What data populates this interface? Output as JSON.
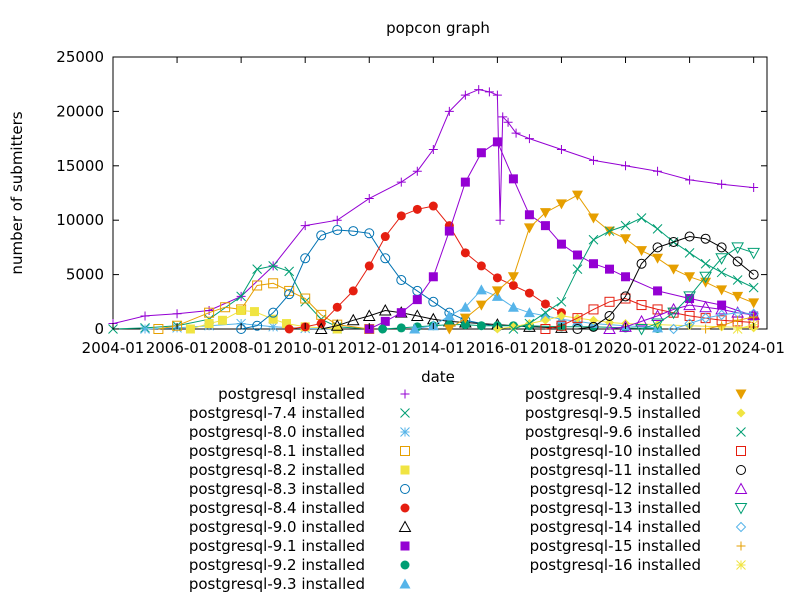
{
  "chart_data": {
    "type": "line",
    "title": "popcon graph",
    "xlabel": "date",
    "ylabel": "number of submitters",
    "x_range": [
      "2004-01",
      "2024-06"
    ],
    "x_ticks": [
      "2004-01",
      "2006-01",
      "2008-01",
      "2010-01",
      "2012-01",
      "2014-01",
      "2016-01",
      "2018-01",
      "2020-01",
      "2022-01",
      "2024-01"
    ],
    "ylim": [
      0,
      25000
    ],
    "y_ticks": [
      0,
      5000,
      10000,
      15000,
      20000,
      25000
    ],
    "grid": false,
    "legend_position": "bottom, two columns",
    "series": [
      {
        "name": "postgresql installed",
        "color": "#9400d3",
        "marker": "plus",
        "x": [
          "2004-01",
          "2005-01",
          "2006-01",
          "2007-01",
          "2008-01",
          "2009-01",
          "2010-01",
          "2011-01",
          "2012-01",
          "2013-01",
          "2013-07",
          "2014-01",
          "2014-07",
          "2015-01",
          "2015-06",
          "2015-10",
          "2016-01",
          "2016-02",
          "2016-03",
          "2016-05",
          "2016-08",
          "2017-01",
          "2018-01",
          "2019-01",
          "2020-01",
          "2021-01",
          "2022-01",
          "2023-01",
          "2024-01"
        ],
        "y": [
          500,
          1200,
          1400,
          1700,
          3000,
          5800,
          9500,
          10000,
          12000,
          13500,
          14500,
          16500,
          20000,
          21500,
          22000,
          21800,
          21500,
          10000,
          19500,
          19000,
          18000,
          17500,
          16500,
          15500,
          15000,
          14500,
          13700,
          13300,
          13000
        ]
      },
      {
        "name": "postgresql-7.4 installed",
        "color": "#009e73",
        "marker": "x",
        "x": [
          "2004-01",
          "2005-01",
          "2006-01",
          "2007-01",
          "2008-01",
          "2008-07",
          "2009-01",
          "2009-07",
          "2010-01",
          "2010-07",
          "2011-01",
          "2012-01"
        ],
        "y": [
          0,
          100,
          300,
          900,
          3000,
          5500,
          5800,
          5300,
          2500,
          900,
          200,
          0
        ]
      },
      {
        "name": "postgresql-8.0 installed",
        "color": "#56b4e9",
        "marker": "star",
        "x": [
          "2005-01",
          "2006-01",
          "2007-01",
          "2008-01",
          "2009-01",
          "2010-01",
          "2011-01"
        ],
        "y": [
          0,
          100,
          300,
          500,
          200,
          50,
          0
        ]
      },
      {
        "name": "postgresql-8.1 installed",
        "color": "#e69f00",
        "marker": "square",
        "x": [
          "2005-06",
          "2006-01",
          "2007-01",
          "2007-07",
          "2008-01",
          "2008-07",
          "2009-01",
          "2009-07",
          "2010-01",
          "2010-07",
          "2011-01",
          "2012-01"
        ],
        "y": [
          0,
          300,
          1500,
          2000,
          1800,
          4000,
          4200,
          3500,
          2800,
          1300,
          400,
          0
        ]
      },
      {
        "name": "postgresql-8.2 installed",
        "color": "#f0e442",
        "marker": "filled-square",
        "x": [
          "2006-06",
          "2007-01",
          "2007-06",
          "2008-01",
          "2008-06",
          "2009-01",
          "2009-06",
          "2010-01",
          "2011-01"
        ],
        "y": [
          0,
          500,
          800,
          1700,
          1600,
          900,
          500,
          200,
          0
        ]
      },
      {
        "name": "postgresql-8.3 installed",
        "color": "#0072b2",
        "marker": "circle",
        "x": [
          "2008-01",
          "2008-07",
          "2009-01",
          "2009-07",
          "2010-01",
          "2010-07",
          "2011-01",
          "2011-07",
          "2012-01",
          "2012-07",
          "2013-01",
          "2013-07",
          "2014-01",
          "2014-07",
          "2015-01",
          "2016-01"
        ],
        "y": [
          0,
          300,
          1500,
          3200,
          6500,
          8600,
          9100,
          9000,
          8800,
          6500,
          4500,
          3500,
          2500,
          1500,
          800,
          200
        ]
      },
      {
        "name": "postgresql-8.4 installed",
        "color": "#e51e10",
        "marker": "filled-circle",
        "x": [
          "2009-07",
          "2010-01",
          "2010-07",
          "2011-01",
          "2011-07",
          "2012-01",
          "2012-07",
          "2013-01",
          "2013-07",
          "2014-01",
          "2014-07",
          "2015-01",
          "2015-07",
          "2016-01",
          "2016-07",
          "2017-01",
          "2017-07",
          "2018-01"
        ],
        "y": [
          0,
          200,
          500,
          2000,
          3500,
          5800,
          8500,
          10400,
          11000,
          11300,
          9500,
          7000,
          5800,
          4700,
          4000,
          3300,
          2300,
          1500
        ]
      },
      {
        "name": "postgresql-9.0 installed",
        "color": "#000000",
        "marker": "triangle",
        "x": [
          "2010-07",
          "2011-01",
          "2011-07",
          "2012-01",
          "2012-07",
          "2013-01",
          "2013-07",
          "2014-01",
          "2014-07",
          "2015-01",
          "2016-01",
          "2017-01",
          "2018-01"
        ],
        "y": [
          0,
          300,
          800,
          1200,
          1700,
          1500,
          1200,
          900,
          700,
          600,
          400,
          200,
          100
        ]
      },
      {
        "name": "postgresql-9.1 installed",
        "color": "#9400d3",
        "marker": "filled-square",
        "x": [
          "2012-01",
          "2012-07",
          "2013-01",
          "2013-07",
          "2014-01",
          "2014-07",
          "2015-01",
          "2015-07",
          "2016-01",
          "2016-07",
          "2017-01",
          "2017-07",
          "2018-01",
          "2018-07",
          "2019-01",
          "2019-07",
          "2020-01",
          "2021-01",
          "2022-01",
          "2023-01",
          "2024-01"
        ],
        "y": [
          0,
          700,
          1500,
          2700,
          4800,
          9000,
          13500,
          16200,
          17200,
          13800,
          10500,
          9500,
          7800,
          6800,
          6000,
          5500,
          4800,
          3500,
          2800,
          2200,
          1200
        ]
      },
      {
        "name": "postgresql-9.2 installed",
        "color": "#009e73",
        "marker": "filled-circle",
        "x": [
          "2012-06",
          "2013-01",
          "2013-07",
          "2014-01",
          "2014-07",
          "2015-01",
          "2015-07",
          "2016-01",
          "2016-07",
          "2017-01",
          "2018-01",
          "2019-01",
          "2020-01",
          "2021-01"
        ],
        "y": [
          0,
          100,
          200,
          300,
          400,
          400,
          300,
          300,
          300,
          300,
          200,
          200,
          100,
          50
        ]
      },
      {
        "name": "postgresql-9.3 installed",
        "color": "#56b4e9",
        "marker": "filled-triangle",
        "x": [
          "2013-06",
          "2014-01",
          "2014-07",
          "2015-01",
          "2015-07",
          "2016-01",
          "2016-07",
          "2017-01",
          "2017-07",
          "2018-01",
          "2018-07",
          "2019-01",
          "2020-01",
          "2021-01"
        ],
        "y": [
          0,
          300,
          1200,
          2000,
          3600,
          3000,
          2000,
          1500,
          1200,
          900,
          700,
          500,
          300,
          100
        ]
      },
      {
        "name": "postgresql-9.4 installed",
        "color": "#e69f00",
        "marker": "filled-triangle-down",
        "x": [
          "2014-07",
          "2015-01",
          "2015-07",
          "2016-01",
          "2016-07",
          "2017-01",
          "2017-07",
          "2018-01",
          "2018-07",
          "2019-01",
          "2019-07",
          "2020-01",
          "2020-07",
          "2021-01",
          "2021-07",
          "2022-01",
          "2022-07",
          "2023-01",
          "2023-07",
          "2024-01"
        ],
        "y": [
          0,
          1000,
          2200,
          3500,
          4800,
          9300,
          10700,
          11500,
          12300,
          10200,
          9000,
          8300,
          7200,
          6500,
          5500,
          4800,
          4300,
          3600,
          3000,
          2400
        ]
      },
      {
        "name": "postgresql-9.5 installed",
        "color": "#f0e442",
        "marker": "filled-diamond",
        "x": [
          "2016-01",
          "2016-07",
          "2017-01",
          "2017-07",
          "2018-01",
          "2018-07",
          "2019-01",
          "2019-07",
          "2020-01",
          "2021-01",
          "2022-01",
          "2023-01",
          "2024-01"
        ],
        "y": [
          0,
          200,
          500,
          800,
          1200,
          1000,
          800,
          600,
          500,
          400,
          300,
          200,
          100
        ]
      },
      {
        "name": "postgresql-9.6 installed",
        "color": "#009e73",
        "marker": "x",
        "x": [
          "2016-07",
          "2017-01",
          "2017-07",
          "2018-01",
          "2018-07",
          "2019-01",
          "2019-07",
          "2020-01",
          "2020-07",
          "2021-01",
          "2021-07",
          "2022-01",
          "2022-07",
          "2023-01",
          "2023-07",
          "2024-01"
        ],
        "y": [
          0,
          500,
          1500,
          2500,
          5500,
          8200,
          9000,
          9500,
          10200,
          9200,
          8000,
          7000,
          6000,
          5200,
          4500,
          3800
        ]
      },
      {
        "name": "postgresql-10 installed",
        "color": "#e51e10",
        "marker": "square",
        "x": [
          "2017-07",
          "2018-01",
          "2018-07",
          "2019-01",
          "2019-07",
          "2020-01",
          "2020-07",
          "2021-01",
          "2021-07",
          "2022-01",
          "2022-07",
          "2023-01",
          "2023-07",
          "2024-01"
        ],
        "y": [
          0,
          300,
          1000,
          1800,
          2500,
          2800,
          2200,
          1800,
          1500,
          1200,
          1000,
          800,
          700,
          600
        ]
      },
      {
        "name": "postgresql-11 installed",
        "color": "#000000",
        "marker": "circle",
        "x": [
          "2018-07",
          "2019-01",
          "2019-07",
          "2020-01",
          "2020-07",
          "2021-01",
          "2021-07",
          "2022-01",
          "2022-07",
          "2023-01",
          "2023-07",
          "2024-01"
        ],
        "y": [
          0,
          200,
          1200,
          3000,
          6000,
          7500,
          8000,
          8500,
          8300,
          7500,
          6200,
          5000
        ]
      },
      {
        "name": "postgresql-12 installed",
        "color": "#9400d3",
        "marker": "triangle",
        "x": [
          "2019-07",
          "2020-01",
          "2020-07",
          "2021-01",
          "2021-07",
          "2022-01",
          "2022-07",
          "2023-01",
          "2023-07",
          "2024-01"
        ],
        "y": [
          0,
          200,
          700,
          1200,
          1800,
          2200,
          2000,
          1800,
          1500,
          1300
        ]
      },
      {
        "name": "postgresql-13 installed",
        "color": "#009e73",
        "marker": "triangle-down",
        "x": [
          "2020-07",
          "2021-01",
          "2021-07",
          "2022-01",
          "2022-07",
          "2023-01",
          "2023-07",
          "2024-01"
        ],
        "y": [
          0,
          500,
          1500,
          3000,
          4800,
          6500,
          7500,
          7000
        ]
      },
      {
        "name": "postgresql-14 installed",
        "color": "#56b4e9",
        "marker": "diamond",
        "x": [
          "2021-07",
          "2022-01",
          "2022-07",
          "2023-01",
          "2023-07",
          "2024-01"
        ],
        "y": [
          0,
          500,
          1000,
          1300,
          1500,
          1400
        ]
      },
      {
        "name": "postgresql-15 installed",
        "color": "#e69f00",
        "marker": "plus",
        "x": [
          "2022-07",
          "2023-01",
          "2023-07",
          "2024-01"
        ],
        "y": [
          0,
          300,
          800,
          1100
        ]
      },
      {
        "name": "postgresql-16 installed",
        "color": "#f0e442",
        "marker": "star",
        "x": [
          "2023-07",
          "2024-01"
        ],
        "y": [
          0,
          400
        ]
      }
    ]
  }
}
